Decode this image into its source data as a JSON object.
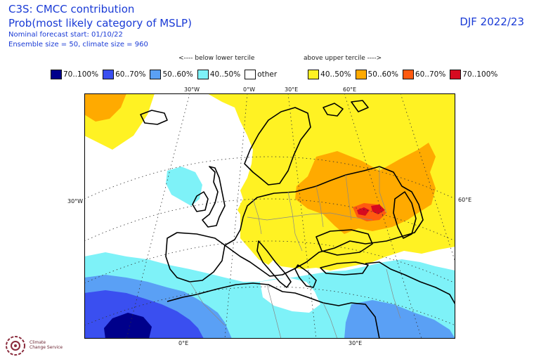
{
  "header": {
    "line1": "C3S: CMCC contribution",
    "line2": "Prob(most likely category of MSLP)",
    "line3": "Nominal forecast start: 01/10/22",
    "line4": "Ensemble size = 50, climate size = 960",
    "season": "DJF 2022/23"
  },
  "tercile_notes": {
    "below": "<---- below lower tercile",
    "above": "above upper tercile ---->"
  },
  "legend": [
    {
      "label": "70..100%",
      "color": "#00008b"
    },
    {
      "label": "60..70%",
      "color": "#3a4ff0"
    },
    {
      "label": "50..60%",
      "color": "#5aa0f5"
    },
    {
      "label": "40..50%",
      "color": "#7ef2f8"
    },
    {
      "label": "other",
      "color": "#ffffff"
    },
    {
      "label": "40..50%",
      "color": "#fff223"
    },
    {
      "label": "50..60%",
      "color": "#ffaa00"
    },
    {
      "label": "60..70%",
      "color": "#ff5a10"
    },
    {
      "label": "70..100%",
      "color": "#d60a20"
    }
  ],
  "axis_labels": {
    "top_30w": "30°W",
    "top_0e": "0°W",
    "top_30e": "30°E",
    "top_60e": "60°E",
    "left_30w": "30°W",
    "right_60e": "60°E",
    "bottom_0e": "0°E",
    "bottom_30e": "30°E"
  },
  "logo": {
    "line1": "Climate",
    "line2": "Change Service"
  }
}
